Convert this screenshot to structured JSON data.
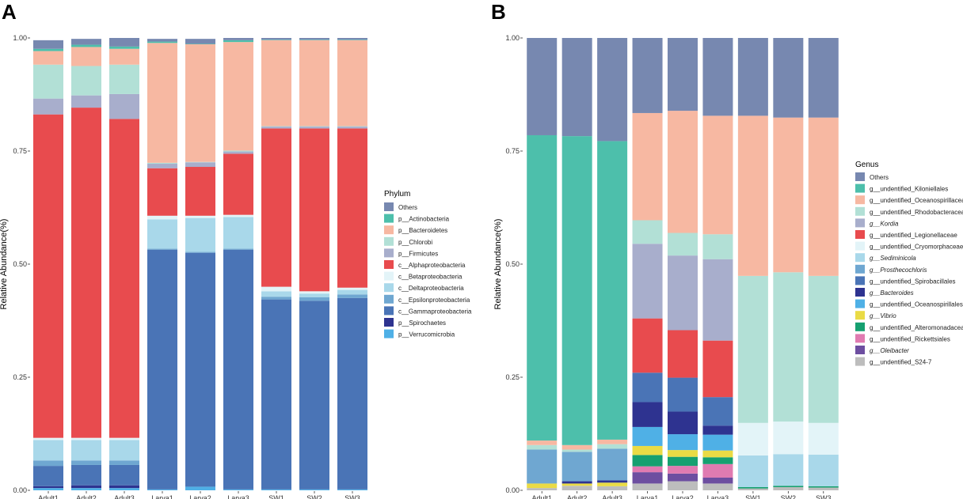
{
  "chart_data": [
    {
      "panel": "A",
      "type": "stacked-bar",
      "ylabel": "Relative Abundance(%)",
      "ylim": [
        0,
        1
      ],
      "yticks": [
        "0.00",
        "0.25",
        "0.50",
        "0.75",
        "1.00"
      ],
      "legend_title": "Phylum",
      "legend_position": "right",
      "categories": [
        "Adult1",
        "Adult2",
        "Adult3",
        "Larva1",
        "Larva2",
        "Larva3",
        "SW1",
        "SW2",
        "SW3"
      ],
      "series": [
        {
          "name": "Others",
          "color": "#7788B0",
          "italic": false,
          "values": [
            0.019,
            0.013,
            0.019,
            0.006,
            0.011,
            0.005,
            0.004,
            0.004,
            0.004
          ]
        },
        {
          "name": "p__Actinobacteria",
          "color": "#4DBFAB",
          "italic": false,
          "values": [
            0.005,
            0.005,
            0.005,
            0.003,
            0.001,
            0.004,
            0.001,
            0.001,
            0.001
          ]
        },
        {
          "name": "p__Bacteroidetes",
          "color": "#F7B8A2",
          "italic": false,
          "values": [
            0.03,
            0.042,
            0.035,
            0.265,
            0.26,
            0.24,
            0.19,
            0.19,
            0.19
          ]
        },
        {
          "name": "p__Chlorobi",
          "color": "#B2E0D6",
          "italic": false,
          "values": [
            0.075,
            0.065,
            0.065,
            0.002,
            0.001,
            0.002,
            0.001,
            0.001,
            0.001
          ]
        },
        {
          "name": "p__Firmicutes",
          "color": "#A8AECC",
          "italic": false,
          "values": [
            0.035,
            0.027,
            0.055,
            0.01,
            0.01,
            0.005,
            0.004,
            0.004,
            0.004
          ]
        },
        {
          "name": "c__Alphaproteobacteria",
          "color": "#E84B4E",
          "italic": false,
          "values": [
            0.715,
            0.73,
            0.705,
            0.105,
            0.108,
            0.135,
            0.35,
            0.36,
            0.352
          ]
        },
        {
          "name": "c__Betaproteobacteria",
          "color": "#E3F4F8",
          "italic": false,
          "values": [
            0.005,
            0.005,
            0.005,
            0.008,
            0.005,
            0.005,
            0.01,
            0.005,
            0.005
          ]
        },
        {
          "name": "c__Deltaproteobacteria",
          "color": "#A9D8EA",
          "italic": false,
          "values": [
            0.045,
            0.045,
            0.045,
            0.065,
            0.075,
            0.07,
            0.012,
            0.008,
            0.01
          ]
        },
        {
          "name": "c__Epsilonproteobacteria",
          "color": "#6FA7D1",
          "italic": false,
          "values": [
            0.012,
            0.01,
            0.01,
            0.002,
            0.002,
            0.002,
            0.006,
            0.008,
            0.008
          ]
        },
        {
          "name": "c__Gammaproteobacteria",
          "color": "#4A74B6",
          "italic": false,
          "values": [
            0.045,
            0.045,
            0.045,
            0.53,
            0.517,
            0.53,
            0.42,
            0.417,
            0.423
          ]
        },
        {
          "name": "p__Spirochaetes",
          "color": "#2E3390",
          "italic": false,
          "values": [
            0.004,
            0.006,
            0.006,
            0.0,
            0.0,
            0.0,
            0.0,
            0.0,
            0.0
          ]
        },
        {
          "name": "p__Verrucomicrobia",
          "color": "#4FB0E6",
          "italic": false,
          "values": [
            0.005,
            0.005,
            0.005,
            0.002,
            0.008,
            0.002,
            0.002,
            0.002,
            0.002
          ]
        }
      ]
    },
    {
      "panel": "B",
      "type": "stacked-bar",
      "ylabel": "Relative Abundance(%)",
      "ylim": [
        0,
        1
      ],
      "yticks": [
        "0.00",
        "0.25",
        "0.50",
        "0.75",
        "1.00"
      ],
      "legend_title": "Genus",
      "legend_position": "right",
      "categories": [
        "Adult1",
        "Adult2",
        "Adult3",
        "Larva1",
        "Larva2",
        "Larva3",
        "SW1",
        "SW2",
        "SW3"
      ],
      "series": [
        {
          "name": "Others",
          "color": "#7788B0",
          "italic": false,
          "values": [
            0.215,
            0.217,
            0.228,
            0.166,
            0.161,
            0.172,
            0.172,
            0.176,
            0.176
          ]
        },
        {
          "name": "g__undentified_Kiloniellales",
          "color": "#4DBFAB",
          "italic": false,
          "values": [
            0.675,
            0.683,
            0.66,
            0.0,
            0.0,
            0.0,
            0.0,
            0.0,
            0.0
          ]
        },
        {
          "name": "g__undentified_Oceanospirillaceae",
          "color": "#F7B8A2",
          "italic": false,
          "values": [
            0.01,
            0.01,
            0.01,
            0.237,
            0.27,
            0.262,
            0.354,
            0.342,
            0.35
          ]
        },
        {
          "name": "g__undentified_Rhodobacteraceae",
          "color": "#B2E0D6",
          "italic": false,
          "values": [
            0.01,
            0.005,
            0.01,
            0.052,
            0.05,
            0.055,
            0.325,
            0.33,
            0.325
          ]
        },
        {
          "name": "g__Kordia",
          "color": "#A8AECC",
          "italic": true,
          "values": [
            0.0,
            0.0,
            0.0,
            0.165,
            0.165,
            0.18,
            0.0,
            0.0,
            0.0
          ]
        },
        {
          "name": "g__undentified_Legionellaceae",
          "color": "#E84B4E",
          "italic": false,
          "values": [
            0.0,
            0.0,
            0.0,
            0.12,
            0.105,
            0.125,
            0.0,
            0.0,
            0.0
          ]
        },
        {
          "name": "g__undentified_Cryomorphaceae",
          "color": "#E3F4F8",
          "italic": false,
          "values": [
            0.0,
            0.0,
            0.0,
            0.0,
            0.0,
            0.0,
            0.072,
            0.072,
            0.07
          ]
        },
        {
          "name": "g__Sediminicola",
          "color": "#A9D8EA",
          "italic": true,
          "values": [
            0.0,
            0.0,
            0.0,
            0.0,
            0.0,
            0.0,
            0.07,
            0.07,
            0.07
          ]
        },
        {
          "name": "g__Prosthecochloris",
          "color": "#6FA7D1",
          "italic": true,
          "values": [
            0.075,
            0.065,
            0.07,
            0.0,
            0.0,
            0.0,
            0.0,
            0.0,
            0.0
          ]
        },
        {
          "name": "g__undentified_Spirobacillales",
          "color": "#4A74B6",
          "italic": false,
          "values": [
            0.0,
            0.0,
            0.0,
            0.065,
            0.075,
            0.063,
            0.0,
            0.0,
            0.0
          ]
        },
        {
          "name": "g__Bacteroides",
          "color": "#2E3390",
          "italic": true,
          "values": [
            0.0,
            0.005,
            0.005,
            0.055,
            0.05,
            0.02,
            0.0,
            0.0,
            0.0
          ]
        },
        {
          "name": "g__undentified_Oceanospirillales",
          "color": "#4FB0E6",
          "italic": false,
          "values": [
            0.0,
            0.0,
            0.0,
            0.042,
            0.035,
            0.035,
            0.0,
            0.0,
            0.0
          ]
        },
        {
          "name": "g__Vibrio",
          "color": "#EADB45",
          "italic": true,
          "values": [
            0.01,
            0.005,
            0.008,
            0.02,
            0.015,
            0.015,
            0.0,
            0.0,
            0.0
          ]
        },
        {
          "name": "g__undentified_Alteromonadaceae",
          "color": "#16A070",
          "italic": false,
          "values": [
            0.0,
            0.0,
            0.0,
            0.025,
            0.02,
            0.015,
            0.003,
            0.003,
            0.003
          ]
        },
        {
          "name": "g__undentified_Rickettsiales",
          "color": "#E07BB1",
          "italic": false,
          "values": [
            0.0,
            0.0,
            0.0,
            0.013,
            0.017,
            0.03,
            0.0,
            0.0,
            0.0
          ]
        },
        {
          "name": "g__Oleibacter",
          "color": "#6D4EA0",
          "italic": true,
          "values": [
            0.0,
            0.0,
            0.0,
            0.025,
            0.017,
            0.013,
            0.0,
            0.0,
            0.0
          ]
        },
        {
          "name": "g__undentified_S24-7",
          "color": "#BDBDBD",
          "italic": false,
          "values": [
            0.005,
            0.01,
            0.009,
            0.015,
            0.02,
            0.015,
            0.004,
            0.007,
            0.006
          ]
        }
      ]
    }
  ]
}
